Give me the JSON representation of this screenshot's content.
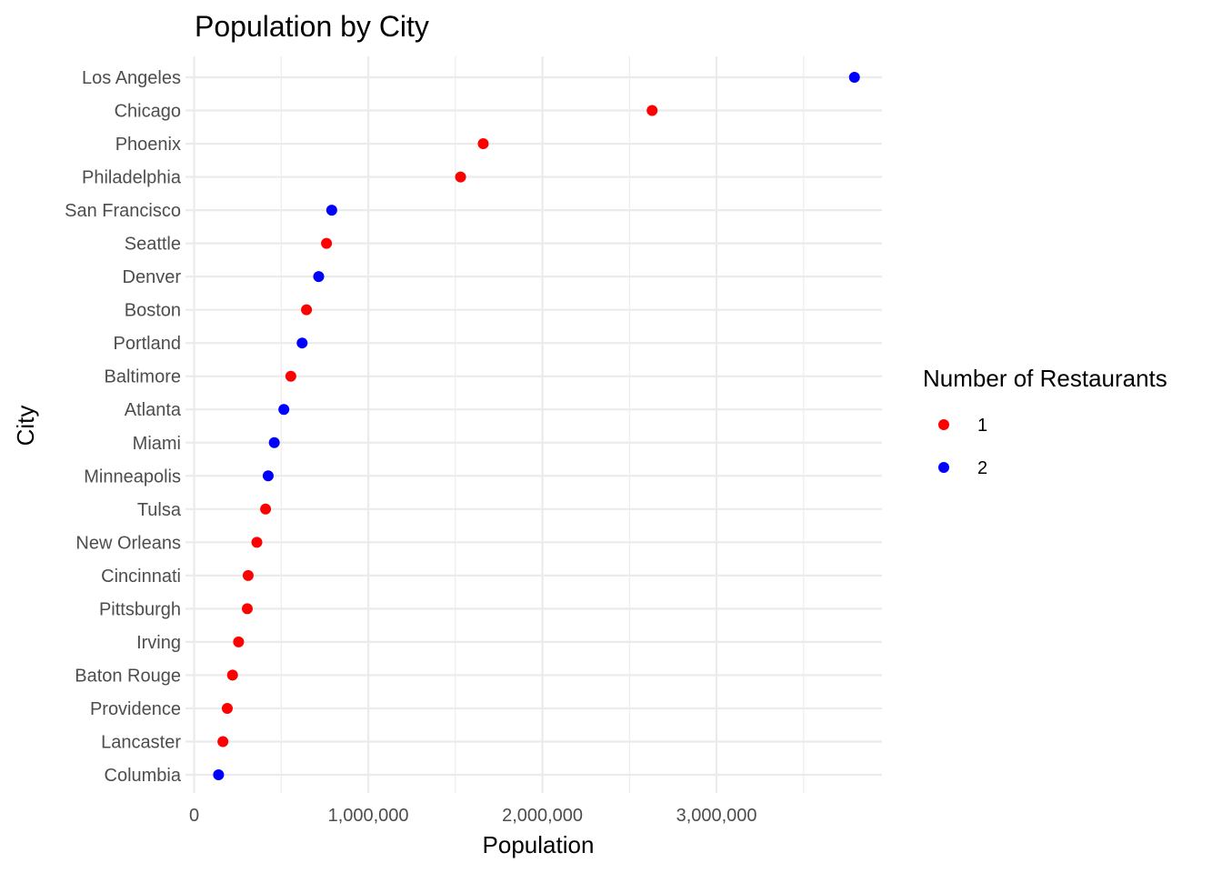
{
  "chart_data": {
    "type": "scatter",
    "title": "Population by City",
    "xlabel": "Population",
    "ylabel": "City",
    "xlim": [
      -50000,
      3950000
    ],
    "x_ticks": [
      0,
      1000000,
      2000000,
      3000000
    ],
    "x_tick_labels": [
      "0",
      "1,000,000",
      "2,000,000",
      "3,000,000"
    ],
    "x_minor_ticks": [
      500000,
      1500000,
      2500000,
      3500000
    ],
    "grid": true,
    "legend": {
      "title": "Number of Restaurants",
      "placement": "right",
      "entries": [
        {
          "label": "1",
          "color": "#ff0000"
        },
        {
          "label": "2",
          "color": "#0000ff"
        }
      ]
    },
    "categories": [
      "Los Angeles",
      "Chicago",
      "Phoenix",
      "Philadelphia",
      "San Francisco",
      "Seattle",
      "Denver",
      "Boston",
      "Portland",
      "Baltimore",
      "Atlanta",
      "Miami",
      "Minneapolis",
      "Tulsa",
      "New Orleans",
      "Cincinnati",
      "Pittsburgh",
      "Irving",
      "Baton Rouge",
      "Providence",
      "Lancaster",
      "Columbia"
    ],
    "points": [
      {
        "city": "Los Angeles",
        "population": 3792000,
        "restaurants": "2"
      },
      {
        "city": "Chicago",
        "population": 2630000,
        "restaurants": "1"
      },
      {
        "city": "Phoenix",
        "population": 1660000,
        "restaurants": "1"
      },
      {
        "city": "Philadelphia",
        "population": 1530000,
        "restaurants": "1"
      },
      {
        "city": "San Francisco",
        "population": 790000,
        "restaurants": "2"
      },
      {
        "city": "Seattle",
        "population": 760000,
        "restaurants": "1"
      },
      {
        "city": "Denver",
        "population": 715000,
        "restaurants": "2"
      },
      {
        "city": "Boston",
        "population": 645000,
        "restaurants": "1"
      },
      {
        "city": "Portland",
        "population": 620000,
        "restaurants": "2"
      },
      {
        "city": "Baltimore",
        "population": 555000,
        "restaurants": "1"
      },
      {
        "city": "Atlanta",
        "population": 515000,
        "restaurants": "2"
      },
      {
        "city": "Miami",
        "population": 460000,
        "restaurants": "2"
      },
      {
        "city": "Minneapolis",
        "population": 425000,
        "restaurants": "2"
      },
      {
        "city": "Tulsa",
        "population": 410000,
        "restaurants": "1"
      },
      {
        "city": "New Orleans",
        "population": 360000,
        "restaurants": "1"
      },
      {
        "city": "Cincinnati",
        "population": 310000,
        "restaurants": "1"
      },
      {
        "city": "Pittsburgh",
        "population": 305000,
        "restaurants": "1"
      },
      {
        "city": "Irving",
        "population": 255000,
        "restaurants": "1"
      },
      {
        "city": "Baton Rouge",
        "population": 220000,
        "restaurants": "1"
      },
      {
        "city": "Providence",
        "population": 190000,
        "restaurants": "1"
      },
      {
        "city": "Lancaster",
        "population": 165000,
        "restaurants": "1"
      },
      {
        "city": "Columbia",
        "population": 140000,
        "restaurants": "2"
      }
    ]
  }
}
